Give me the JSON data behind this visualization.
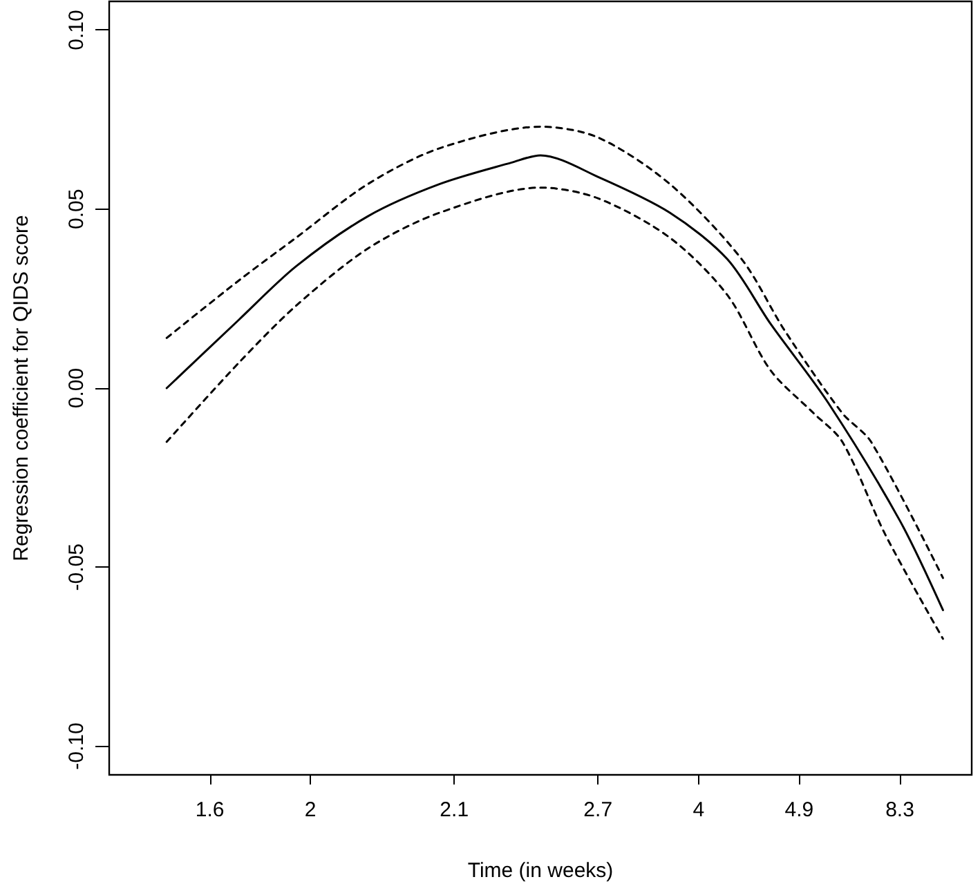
{
  "chart_data": {
    "type": "line",
    "xlabel": "Time (in weeks)",
    "ylabel": "Regression coefficient for QIDS score",
    "categories": [
      null,
      null,
      null,
      null,
      null,
      null,
      null,
      "1.6",
      null,
      null,
      null,
      null,
      null,
      null,
      "2",
      null,
      null,
      null,
      null,
      null,
      null,
      null,
      null,
      null,
      "2.1",
      null,
      null,
      null,
      null,
      null,
      null,
      null,
      null,
      null,
      "2.7",
      null,
      null,
      null,
      null,
      null,
      null,
      "4",
      null,
      null,
      null,
      null,
      null,
      null,
      "4.9",
      null,
      null,
      null,
      null,
      null,
      null,
      "8.3",
      null,
      null,
      null,
      null,
      null
    ],
    "ylim": [
      -0.108,
      0.108
    ],
    "yticks": [
      {
        "value": -0.1,
        "label": "-0.10"
      },
      {
        "value": -0.05,
        "label": "-0.05"
      },
      {
        "value": 0,
        "label": "0.00"
      },
      {
        "value": 0.05,
        "label": "0.05"
      },
      {
        "value": 0.1,
        "label": "0.10"
      }
    ],
    "marker": "none",
    "series": [
      {
        "color": "#000000",
        "line_style": "solid",
        "values": [
          null,
          null,
          null,
          null,
          0,
          null,
          null,
          null,
          null,
          0.019,
          null,
          null,
          null,
          0.034,
          null,
          null,
          null,
          null,
          0.048,
          null,
          null,
          null,
          null,
          0.057,
          null,
          null,
          null,
          null,
          0.063,
          null,
          0.065,
          null,
          null,
          null,
          0.059,
          null,
          null,
          null,
          null,
          0.049,
          null,
          null,
          null,
          0.036,
          null,
          null,
          0.018,
          null,
          null,
          null,
          -0.004,
          null,
          null,
          null,
          null,
          -0.037,
          null,
          null,
          -0.062,
          null,
          null
        ]
      },
      {
        "color": "#000000",
        "line_style": "dashed",
        "values": [
          null,
          null,
          null,
          null,
          0.014,
          null,
          null,
          null,
          null,
          0.03,
          null,
          null,
          null,
          0.042,
          null,
          null,
          null,
          null,
          0.057,
          null,
          null,
          null,
          null,
          0.067,
          null,
          null,
          null,
          null,
          null,
          null,
          0.073,
          null,
          null,
          null,
          0.07,
          null,
          null,
          null,
          null,
          0.057,
          null,
          null,
          null,
          null,
          0.036,
          null,
          null,
          0.016,
          null,
          null,
          null,
          -0.007,
          null,
          -0.015,
          null,
          null,
          null,
          null,
          -0.053,
          null,
          null
        ]
      },
      {
        "color": "#000000",
        "line_style": "dashed",
        "values": [
          null,
          null,
          null,
          null,
          -0.015,
          null,
          null,
          null,
          null,
          0.007,
          null,
          null,
          null,
          0.023,
          null,
          null,
          null,
          null,
          0.039,
          null,
          null,
          null,
          null,
          0.049,
          null,
          null,
          null,
          null,
          null,
          null,
          0.056,
          null,
          null,
          null,
          0.053,
          null,
          null,
          null,
          null,
          0.042,
          null,
          null,
          null,
          0.026,
          null,
          null,
          0.005,
          null,
          null,
          -0.007,
          null,
          -0.015,
          null,
          null,
          -0.041,
          null,
          null,
          null,
          -0.07,
          null,
          null
        ]
      }
    ]
  }
}
